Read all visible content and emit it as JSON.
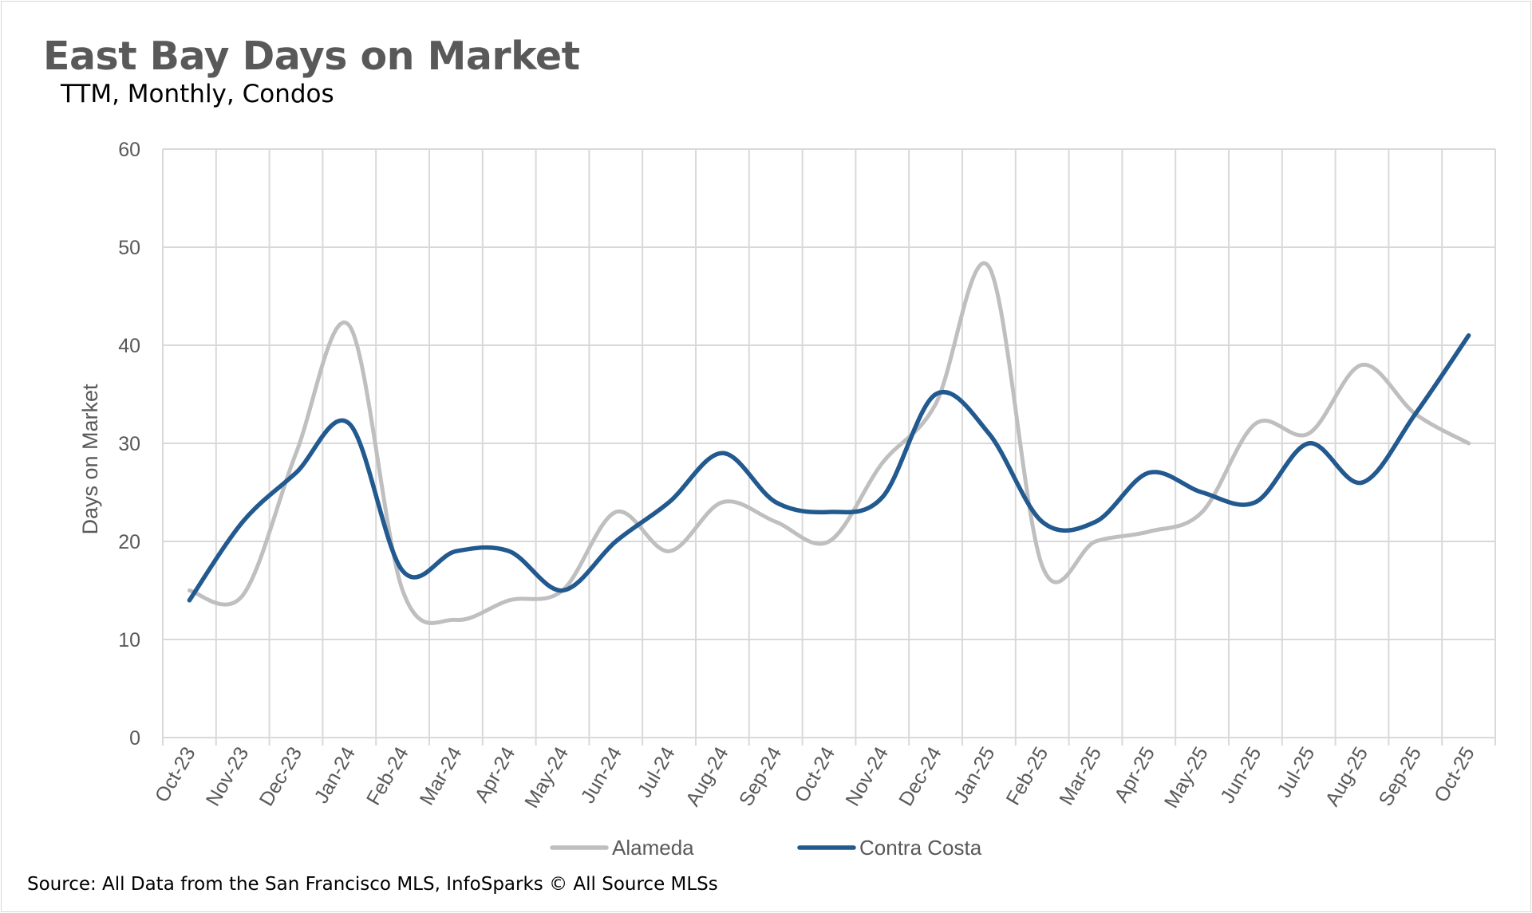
{
  "chart_data": {
    "type": "line",
    "title": "East Bay Days on Market",
    "subtitle": "TTM, Monthly, Condos",
    "xlabel": "",
    "ylabel": "Days on Market",
    "ylim": [
      0,
      60
    ],
    "yticks": [
      0,
      10,
      20,
      30,
      40,
      50,
      60
    ],
    "grid": true,
    "smooth": true,
    "legend": "bottom",
    "categories": [
      "Oct-23",
      "Nov-23",
      "Dec-23",
      "Jan-24",
      "Feb-24",
      "Mar-24",
      "Apr-24",
      "May-24",
      "Jun-24",
      "Jul-24",
      "Aug-24",
      "Sep-24",
      "Oct-24",
      "Nov-24",
      "Dec-24",
      "Jan-25",
      "Feb-25",
      "Mar-25",
      "Apr-25",
      "May-25",
      "Jun-25",
      "Jul-25",
      "Aug-25",
      "Sep-25",
      "Oct-25"
    ],
    "series": [
      {
        "name": "Alameda",
        "color": "#bfbfbf",
        "values": [
          15,
          14.5,
          29,
          42,
          15,
          12,
          14,
          15,
          23,
          19,
          24,
          22,
          20,
          28,
          34,
          48,
          17.5,
          20,
          21,
          23,
          32,
          31,
          38,
          33,
          30
        ]
      },
      {
        "name": "Contra Costa",
        "color": "#22598f",
        "values": [
          14,
          22,
          27,
          32,
          17,
          19,
          19,
          15,
          20,
          24,
          29,
          24,
          23,
          24.5,
          35,
          31,
          22,
          22,
          27,
          25,
          24,
          30,
          26,
          33,
          41
        ]
      }
    ],
    "source": "Source: All Data from the San Francisco MLS, InfoSparks © All Source MLSs"
  }
}
